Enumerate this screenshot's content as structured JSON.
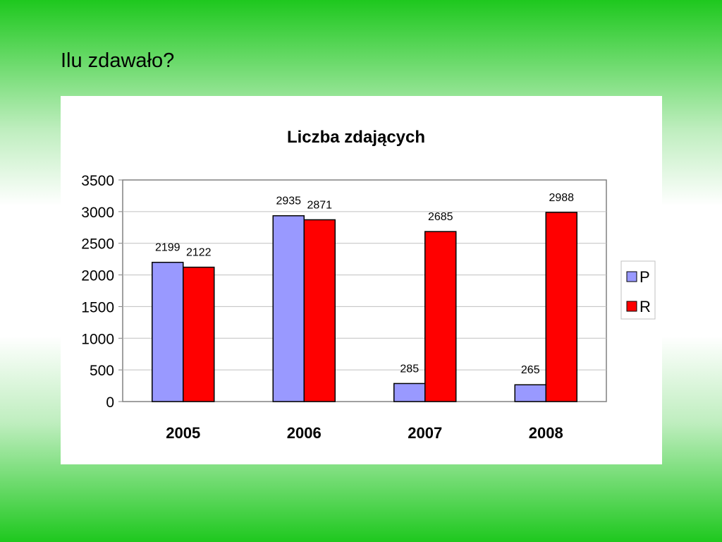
{
  "slide": {
    "title": "Ilu zdawało?"
  },
  "colors": {
    "P": "#9999ff",
    "R": "#ff0000"
  },
  "chart_data": {
    "type": "bar",
    "title": "Liczba zdających",
    "categories": [
      "2005",
      "2006",
      "2007",
      "2008"
    ],
    "series": [
      {
        "name": "P",
        "values": [
          2199,
          2935,
          285,
          265
        ]
      },
      {
        "name": "R",
        "values": [
          2122,
          2871,
          2685,
          2988
        ]
      }
    ],
    "ylim": [
      0,
      3500
    ],
    "yticks": [
      0,
      500,
      1000,
      1500,
      2000,
      2500,
      3000,
      3500
    ],
    "grid": true,
    "legend": "right"
  }
}
